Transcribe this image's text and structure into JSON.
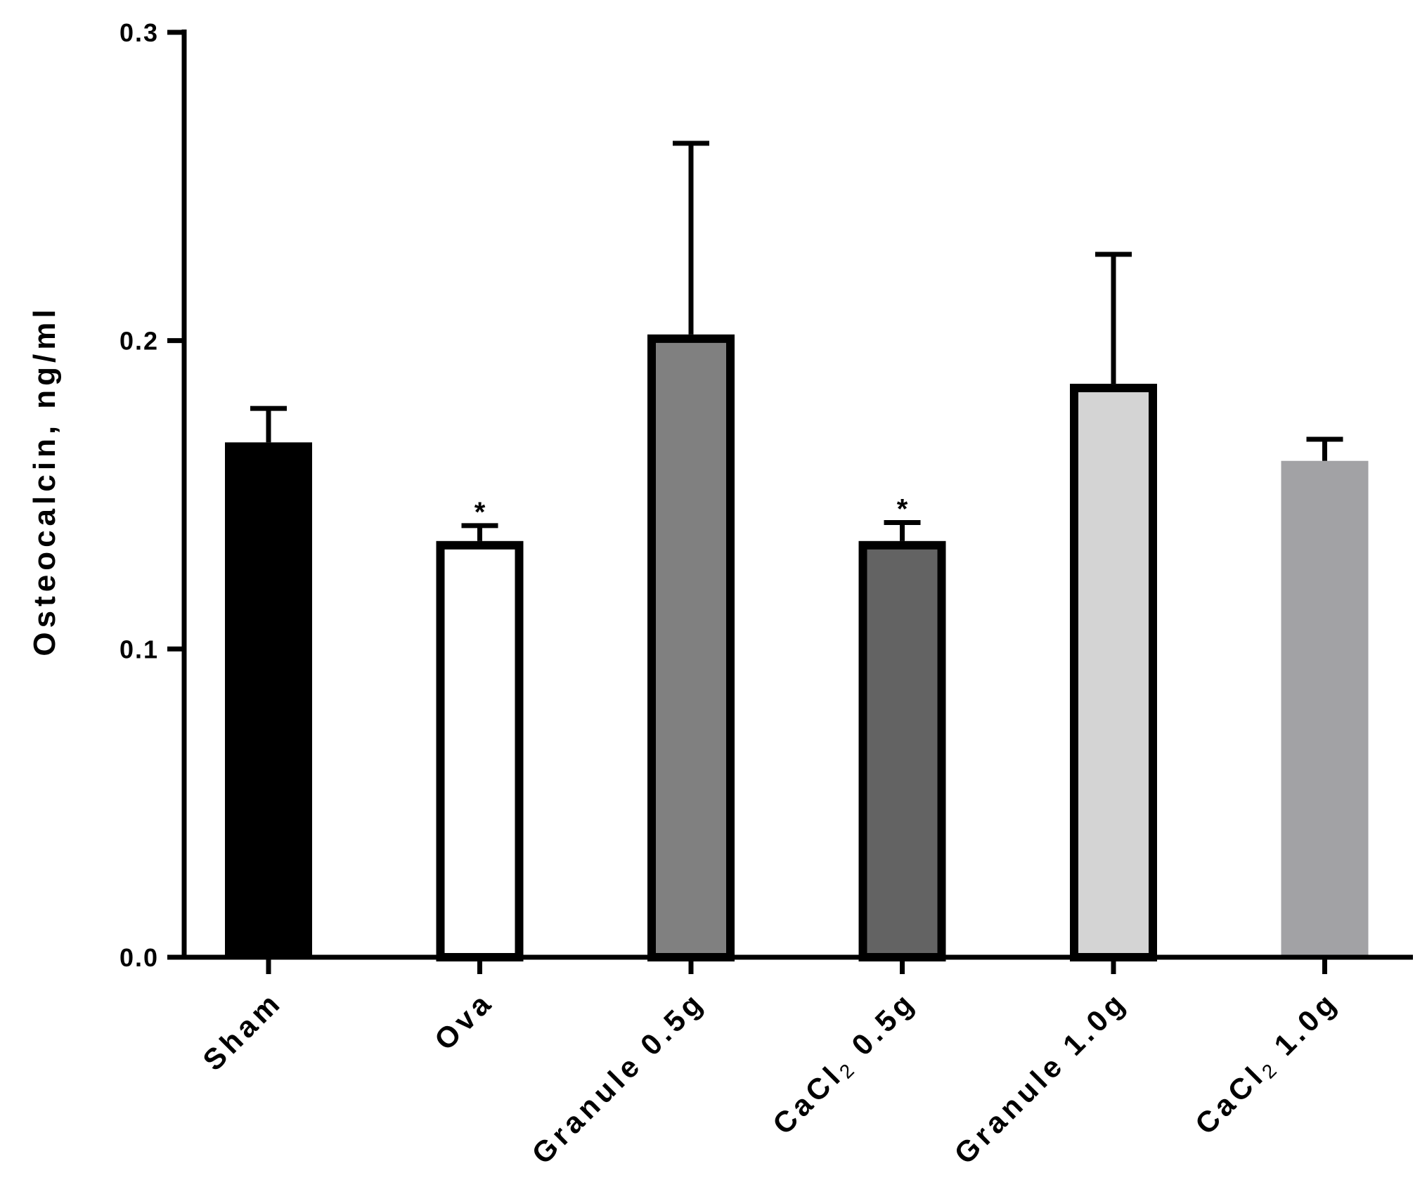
{
  "chart_data": {
    "type": "bar",
    "title": "",
    "xlabel": "",
    "ylabel": "Osteocalcin, ng/ml",
    "ylim": [
      0,
      0.3
    ],
    "yticks": [
      "0.0",
      "0.1",
      "0.2",
      "0.3"
    ],
    "ytick_values": [
      0,
      0.1,
      0.2,
      0.3
    ],
    "grid": false,
    "legend": "none",
    "categories": [
      "Sham",
      "Ova",
      "Granule 0.5g",
      "CaCl2 0.5g",
      "Granule 1.0g",
      "CaCl2 1.0g"
    ],
    "category_labels": [
      {
        "text": "Sham",
        "sub": "",
        "rest": ""
      },
      {
        "text": "Ova",
        "sub": "",
        "rest": ""
      },
      {
        "text": "Granule 0.5g",
        "sub": "",
        "rest": ""
      },
      {
        "text": "CaCl",
        "sub": "2",
        "rest": " 0.5g"
      },
      {
        "text": "Granule 1.0g",
        "sub": "",
        "rest": ""
      },
      {
        "text": "CaCl",
        "sub": "2",
        "rest": " 1.0g"
      }
    ],
    "values": [
      0.167,
      0.135,
      0.202,
      0.135,
      0.186,
      0.161
    ],
    "error_upper": [
      0.178,
      0.14,
      0.264,
      0.141,
      0.228,
      0.168
    ],
    "significance": [
      "",
      "*",
      "",
      "*",
      "",
      ""
    ],
    "bar_fill": [
      "#000000",
      "#ffffff",
      "#808080",
      "#636363",
      "#d4d4d4",
      "#a2a2a5"
    ],
    "bar_outlined": [
      false,
      true,
      true,
      true,
      true,
      false
    ]
  }
}
